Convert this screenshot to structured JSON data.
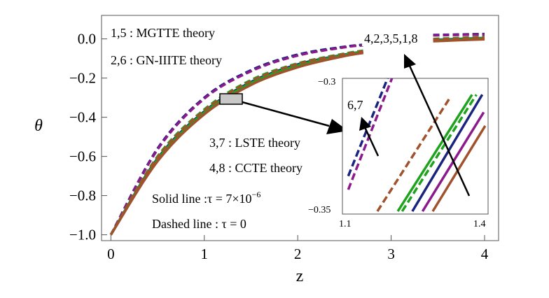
{
  "chart_data": {
    "type": "line",
    "title": "",
    "xlabel": "z",
    "ylabel": "θ",
    "xlim": [
      -0.1,
      4.15
    ],
    "ylim": [
      -1.03,
      0.12
    ],
    "x_ticks": [
      0,
      1,
      2,
      3,
      4
    ],
    "x_tick_labels": [
      "0",
      "1",
      "2",
      "3",
      "4"
    ],
    "y_ticks": [
      0.0,
      -0.2,
      -0.4,
      -0.6,
      -0.8,
      -1.0
    ],
    "y_tick_labels": [
      "0.0",
      "−0.2",
      "−0.4",
      "−0.6",
      "−0.8",
      "−1.0"
    ],
    "grid": false,
    "series": [
      {
        "name": "1",
        "color": "#8B1A8B",
        "dashed": false,
        "x": [
          0,
          0.5,
          1,
          1.5,
          2,
          2.5,
          2.7,
          3.45,
          4
        ],
        "y": [
          -1.0,
          -0.62,
          -0.38,
          -0.23,
          -0.14,
          -0.085,
          -0.07,
          -0.01,
          0.0
        ]
      },
      {
        "name": "2",
        "color": "#1A237E",
        "dashed": false,
        "x": [
          0,
          0.5,
          1,
          1.5,
          2,
          2.5,
          2.7,
          3.45,
          4
        ],
        "y": [
          -1.0,
          -0.61,
          -0.37,
          -0.22,
          -0.13,
          -0.08,
          -0.065,
          -0.005,
          0.005
        ]
      },
      {
        "name": "3",
        "color": "#1FA31F",
        "dashed": false,
        "x": [
          0,
          0.5,
          1,
          1.5,
          2,
          2.5,
          2.7,
          3.45,
          4
        ],
        "y": [
          -1.0,
          -0.615,
          -0.375,
          -0.225,
          -0.135,
          -0.082,
          -0.066,
          -0.007,
          0.003
        ]
      },
      {
        "name": "4",
        "color": "#A0522D",
        "dashed": false,
        "x": [
          0,
          0.5,
          1,
          1.5,
          2,
          2.5,
          2.7,
          3.45,
          4
        ],
        "y": [
          -1.0,
          -0.625,
          -0.385,
          -0.235,
          -0.145,
          -0.088,
          -0.072,
          -0.012,
          -0.002
        ]
      },
      {
        "name": "5",
        "color": "#1A237E",
        "dashed": true,
        "x": [
          0,
          0.5,
          1,
          1.5,
          2,
          2.5,
          2.7,
          3.45,
          4
        ],
        "y": [
          -1.0,
          -0.56,
          -0.3,
          -0.16,
          -0.08,
          -0.04,
          -0.03,
          0.02,
          0.025
        ]
      },
      {
        "name": "6",
        "color": "#8B1A8B",
        "dashed": true,
        "x": [
          0,
          0.5,
          1,
          1.5,
          2,
          2.5,
          2.7,
          3.45,
          4
        ],
        "y": [
          -1.0,
          -0.565,
          -0.305,
          -0.165,
          -0.085,
          -0.043,
          -0.033,
          0.018,
          0.022
        ]
      },
      {
        "name": "7",
        "color": "#1FA31F",
        "dashed": true,
        "x": [
          0,
          0.5,
          1,
          1.5,
          2,
          2.5,
          2.7,
          3.45,
          4
        ],
        "y": [
          -1.0,
          -0.6,
          -0.36,
          -0.21,
          -0.125,
          -0.075,
          -0.06,
          0.0,
          0.01
        ]
      },
      {
        "name": "8",
        "color": "#A0522D",
        "dashed": true,
        "x": [
          0,
          0.5,
          1,
          1.5,
          2,
          2.5,
          2.7,
          3.45,
          4
        ],
        "y": [
          -1.0,
          -0.605,
          -0.365,
          -0.215,
          -0.128,
          -0.078,
          -0.063,
          -0.003,
          0.008
        ]
      }
    ],
    "annotations": {
      "legend_1": "1,5 : MGTTE theory",
      "legend_2": "2,6 : GN-IIITE theory",
      "legend_3": "3,7 : LSTE theory",
      "legend_4": "4,8 : CCTE theory",
      "solid_line": "Solid line :τ = 7×10",
      "solid_line_exp": "−6",
      "dashed_line": "Dashed line : τ = 0",
      "order_label": "4,2,3,5,1,8",
      "inset_order_label": "6,7"
    },
    "inset": {
      "xlim": [
        1.1,
        1.4
      ],
      "ylim": [
        -0.35,
        -0.3
      ],
      "x_tick_labels": [
        "1.1",
        "1.4"
      ],
      "y_tick_labels": [
        "−0.3",
        "−0.35"
      ]
    }
  }
}
